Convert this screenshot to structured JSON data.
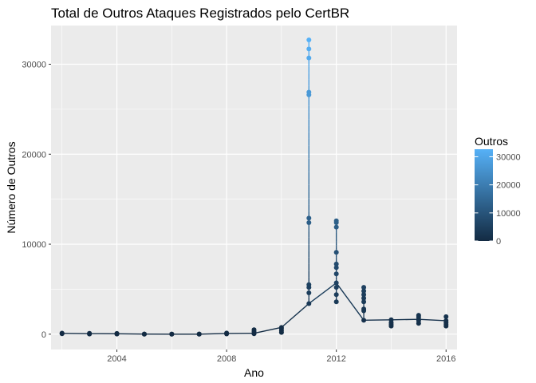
{
  "chart_data": {
    "type": "line",
    "title": "Total de Outros Ataques Registrados pelo CertBR",
    "xlabel": "Ano",
    "ylabel": "Número de Outros",
    "xlim": [
      2001.6,
      2016.4
    ],
    "ylim": [
      -1700,
      34300
    ],
    "x_ticks": [
      2004,
      2008,
      2012,
      2016
    ],
    "y_ticks": [
      0,
      10000,
      20000,
      30000
    ],
    "grid": true,
    "legend": {
      "title": "Outros",
      "placement": "right",
      "ticks": [
        0,
        10000,
        20000,
        30000
      ],
      "range": [
        0,
        32700
      ],
      "color_low": "#132B43",
      "color_high": "#56B1F7"
    },
    "line_points": [
      {
        "x": 2002,
        "y": 90
      },
      {
        "x": 2003,
        "y": 60
      },
      {
        "x": 2004,
        "y": 50
      },
      {
        "x": 2005,
        "y": 10
      },
      {
        "x": 2006,
        "y": 5
      },
      {
        "x": 2007,
        "y": 5
      },
      {
        "x": 2008,
        "y": 80
      },
      {
        "x": 2009,
        "y": 100
      },
      {
        "x": 2010,
        "y": 750
      },
      {
        "x": 2011,
        "y": 3400
      },
      {
        "x": 2012,
        "y": 5700
      },
      {
        "x": 2013,
        "y": 1550
      },
      {
        "x": 2014,
        "y": 1600
      },
      {
        "x": 2015,
        "y": 1650
      },
      {
        "x": 2016,
        "y": 1500
      }
    ],
    "segments": [
      {
        "x": 2011,
        "y_from": 3400,
        "y_to": 32700
      },
      {
        "x": 2012,
        "y_from": 3600,
        "y_to": 12600
      },
      {
        "x": 2013,
        "y_from": 1550,
        "y_to": 5200
      },
      {
        "x": 2009,
        "y_from": 50,
        "y_to": 500
      },
      {
        "x": 2010,
        "y_from": 200,
        "y_to": 750
      },
      {
        "x": 2015,
        "y_from": 1200,
        "y_to": 2100
      },
      {
        "x": 2016,
        "y_from": 900,
        "y_to": 1950
      }
    ],
    "points": [
      {
        "x": 2002,
        "y": 50
      },
      {
        "x": 2002,
        "y": 90
      },
      {
        "x": 2002,
        "y": 120
      },
      {
        "x": 2003,
        "y": 20
      },
      {
        "x": 2003,
        "y": 60
      },
      {
        "x": 2003,
        "y": 100
      },
      {
        "x": 2004,
        "y": 20
      },
      {
        "x": 2004,
        "y": 50
      },
      {
        "x": 2004,
        "y": 80
      },
      {
        "x": 2005,
        "y": 5
      },
      {
        "x": 2005,
        "y": 10
      },
      {
        "x": 2005,
        "y": 20
      },
      {
        "x": 2006,
        "y": 2
      },
      {
        "x": 2006,
        "y": 5
      },
      {
        "x": 2006,
        "y": 10
      },
      {
        "x": 2007,
        "y": 2
      },
      {
        "x": 2007,
        "y": 5
      },
      {
        "x": 2007,
        "y": 15
      },
      {
        "x": 2008,
        "y": 30
      },
      {
        "x": 2008,
        "y": 80
      },
      {
        "x": 2008,
        "y": 130
      },
      {
        "x": 2009,
        "y": 50
      },
      {
        "x": 2009,
        "y": 100
      },
      {
        "x": 2009,
        "y": 300
      },
      {
        "x": 2009,
        "y": 500
      },
      {
        "x": 2010,
        "y": 200
      },
      {
        "x": 2010,
        "y": 400
      },
      {
        "x": 2010,
        "y": 600
      },
      {
        "x": 2010,
        "y": 750
      },
      {
        "x": 2011,
        "y": 3400
      },
      {
        "x": 2011,
        "y": 4600
      },
      {
        "x": 2011,
        "y": 5200
      },
      {
        "x": 2011,
        "y": 5500
      },
      {
        "x": 2011,
        "y": 12400
      },
      {
        "x": 2011,
        "y": 12900
      },
      {
        "x": 2011,
        "y": 26600
      },
      {
        "x": 2011,
        "y": 26900
      },
      {
        "x": 2011,
        "y": 30700
      },
      {
        "x": 2011,
        "y": 31700
      },
      {
        "x": 2011,
        "y": 32700
      },
      {
        "x": 2012,
        "y": 3600
      },
      {
        "x": 2012,
        "y": 4400
      },
      {
        "x": 2012,
        "y": 5200
      },
      {
        "x": 2012,
        "y": 5700
      },
      {
        "x": 2012,
        "y": 6700
      },
      {
        "x": 2012,
        "y": 7400
      },
      {
        "x": 2012,
        "y": 7800
      },
      {
        "x": 2012,
        "y": 9100
      },
      {
        "x": 2012,
        "y": 11900
      },
      {
        "x": 2012,
        "y": 12400
      },
      {
        "x": 2012,
        "y": 12600
      },
      {
        "x": 2013,
        "y": 1550
      },
      {
        "x": 2013,
        "y": 2600
      },
      {
        "x": 2013,
        "y": 2800
      },
      {
        "x": 2013,
        "y": 3600
      },
      {
        "x": 2013,
        "y": 4000
      },
      {
        "x": 2013,
        "y": 4400
      },
      {
        "x": 2013,
        "y": 4800
      },
      {
        "x": 2013,
        "y": 5200
      },
      {
        "x": 2014,
        "y": 900
      },
      {
        "x": 2014,
        "y": 1100
      },
      {
        "x": 2014,
        "y": 1300
      },
      {
        "x": 2014,
        "y": 1600
      },
      {
        "x": 2015,
        "y": 1200
      },
      {
        "x": 2015,
        "y": 1500
      },
      {
        "x": 2015,
        "y": 1650
      },
      {
        "x": 2015,
        "y": 1900
      },
      {
        "x": 2015,
        "y": 2100
      },
      {
        "x": 2016,
        "y": 900
      },
      {
        "x": 2016,
        "y": 1100
      },
      {
        "x": 2016,
        "y": 1300
      },
      {
        "x": 2016,
        "y": 1500
      },
      {
        "x": 2016,
        "y": 1950
      }
    ]
  }
}
